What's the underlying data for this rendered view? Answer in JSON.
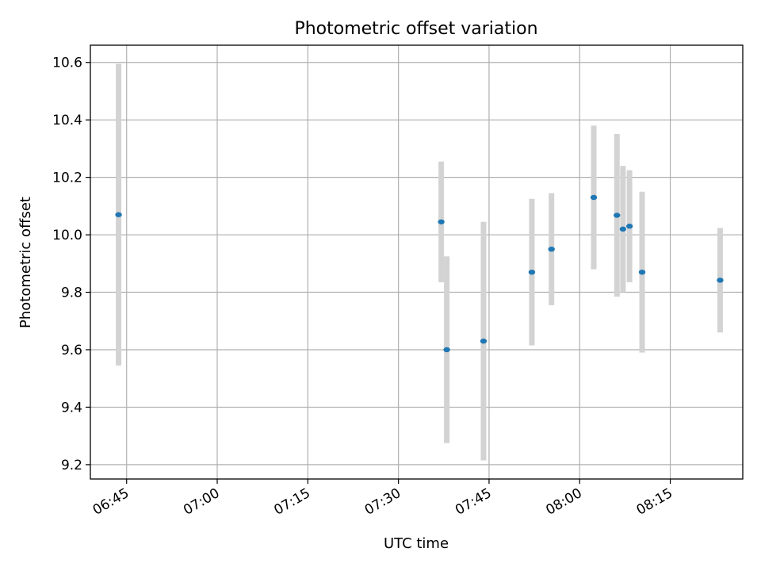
{
  "chart_data": {
    "type": "scatter",
    "title": "Photometric offset variation",
    "xlabel": "UTC time",
    "ylabel": "Photometric offset",
    "x_axis_type": "time",
    "xlim": [
      "06:39",
      "08:27"
    ],
    "ylim": [
      9.15,
      10.66
    ],
    "grid": true,
    "x_ticks": [
      "06:45",
      "07:00",
      "07:15",
      "07:30",
      "07:45",
      "08:00",
      "08:15"
    ],
    "y_ticks": [
      9.2,
      9.4,
      9.6,
      9.8,
      10.0,
      10.2,
      10.4,
      10.6
    ],
    "y_tick_labels": [
      "9.2",
      "9.4",
      "9.6",
      "9.8",
      "10.0",
      "10.2",
      "10.4",
      "10.6"
    ],
    "point_color": "#1f77b4",
    "errorbar_color": "#d3d3d3",
    "points": [
      {
        "time": "06:43:40",
        "y": 10.07,
        "err": 0.525
      },
      {
        "time": "07:37:05",
        "y": 10.045,
        "err": 0.21
      },
      {
        "time": "07:38:00",
        "y": 9.6,
        "err": 0.325
      },
      {
        "time": "07:44:05",
        "y": 9.63,
        "err": 0.415
      },
      {
        "time": "07:52:05",
        "y": 9.87,
        "err": 0.255
      },
      {
        "time": "07:55:20",
        "y": 9.95,
        "err": 0.195
      },
      {
        "time": "08:02:20",
        "y": 10.13,
        "err": 0.25
      },
      {
        "time": "08:06:10",
        "y": 10.068,
        "err": 0.283
      },
      {
        "time": "08:07:10",
        "y": 10.02,
        "err": 0.22
      },
      {
        "time": "08:08:15",
        "y": 10.03,
        "err": 0.195
      },
      {
        "time": "08:10:20",
        "y": 9.87,
        "err": 0.28
      },
      {
        "time": "08:23:15",
        "y": 9.842,
        "err": 0.182
      }
    ]
  }
}
